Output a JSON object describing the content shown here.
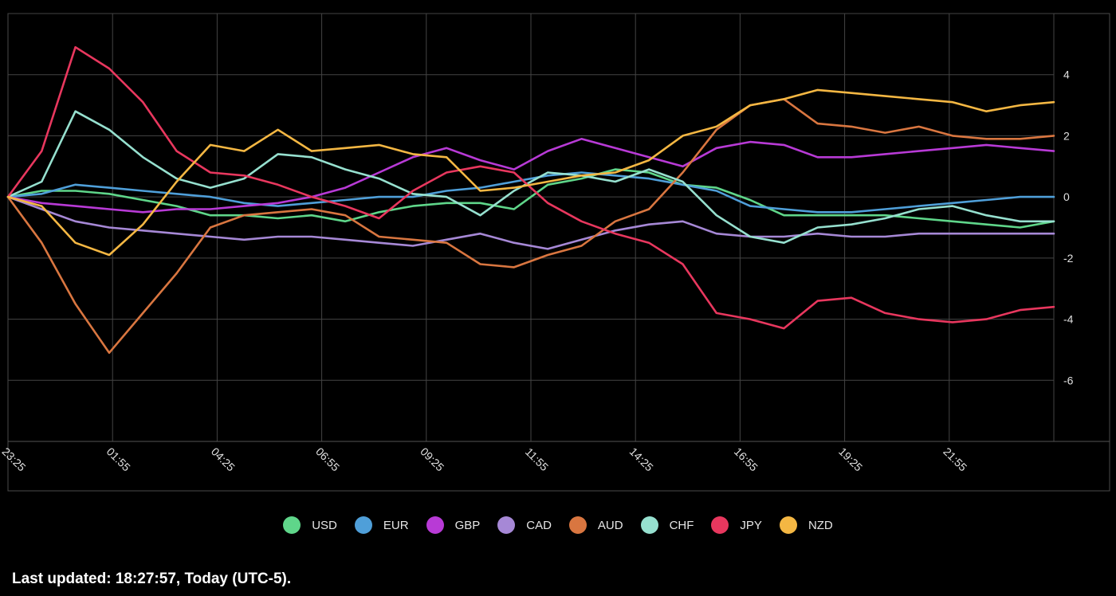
{
  "chart_data": {
    "type": "line",
    "title": "",
    "xlabel": "",
    "ylabel": "",
    "x_ticks": [
      "23:25",
      "01:55",
      "04:25",
      "06:55",
      "09:25",
      "11:55",
      "14:25",
      "16:55",
      "19:25",
      "21:55"
    ],
    "y_ticks": [
      4,
      2,
      0,
      -2,
      -4,
      -6
    ],
    "ylim": [
      -8,
      6
    ],
    "grid": true,
    "legend_position": "bottom",
    "series": [
      {
        "name": "USD",
        "color": "#5fd68a",
        "values": [
          0.0,
          0.2,
          0.2,
          0.1,
          -0.1,
          -0.3,
          -0.6,
          -0.6,
          -0.7,
          -0.6,
          -0.8,
          -0.5,
          -0.3,
          -0.2,
          -0.2,
          -0.4,
          0.4,
          0.6,
          0.9,
          0.8,
          0.4,
          0.3,
          -0.1,
          -0.6,
          -0.6,
          -0.6,
          -0.6,
          -0.7,
          -0.8,
          -0.9,
          -1.0,
          -0.8
        ]
      },
      {
        "name": "EUR",
        "color": "#4f9fd9",
        "values": [
          0.0,
          0.1,
          0.4,
          0.3,
          0.2,
          0.1,
          0.0,
          -0.2,
          -0.3,
          -0.2,
          -0.1,
          0.0,
          0.0,
          0.2,
          0.3,
          0.5,
          0.7,
          0.8,
          0.7,
          0.6,
          0.4,
          0.2,
          -0.3,
          -0.4,
          -0.5,
          -0.5,
          -0.4,
          -0.3,
          -0.2,
          -0.1,
          0.0,
          0.0
        ]
      },
      {
        "name": "GBP",
        "color": "#b83ad6",
        "values": [
          0.0,
          -0.2,
          -0.3,
          -0.4,
          -0.5,
          -0.4,
          -0.4,
          -0.3,
          -0.2,
          0.0,
          0.3,
          0.8,
          1.3,
          1.6,
          1.2,
          0.9,
          1.5,
          1.9,
          1.6,
          1.3,
          1.0,
          1.6,
          1.8,
          1.7,
          1.3,
          1.3,
          1.4,
          1.5,
          1.6,
          1.7,
          1.6,
          1.5
        ]
      },
      {
        "name": "CAD",
        "color": "#a688d6",
        "values": [
          0.0,
          -0.4,
          -0.8,
          -1.0,
          -1.1,
          -1.2,
          -1.3,
          -1.4,
          -1.3,
          -1.3,
          -1.4,
          -1.5,
          -1.6,
          -1.4,
          -1.2,
          -1.5,
          -1.7,
          -1.4,
          -1.1,
          -0.9,
          -0.8,
          -1.2,
          -1.3,
          -1.3,
          -1.2,
          -1.3,
          -1.3,
          -1.2,
          -1.2,
          -1.2,
          -1.2,
          -1.2
        ]
      },
      {
        "name": "AUD",
        "color": "#d97640",
        "values": [
          0.0,
          -1.5,
          -3.5,
          -5.1,
          -3.8,
          -2.5,
          -1.0,
          -0.6,
          -0.5,
          -0.4,
          -0.6,
          -1.3,
          -1.4,
          -1.5,
          -2.2,
          -2.3,
          -1.9,
          -1.6,
          -0.8,
          -0.4,
          0.8,
          2.2,
          3.0,
          3.2,
          2.4,
          2.3,
          2.1,
          2.3,
          2.0,
          1.9,
          1.9,
          2.0
        ]
      },
      {
        "name": "CHF",
        "color": "#96e0cf",
        "values": [
          0.0,
          0.5,
          2.8,
          2.2,
          1.3,
          0.6,
          0.3,
          0.6,
          1.4,
          1.3,
          0.9,
          0.6,
          0.1,
          0.0,
          -0.6,
          0.2,
          0.8,
          0.7,
          0.5,
          0.9,
          0.5,
          -0.6,
          -1.3,
          -1.5,
          -1.0,
          -0.9,
          -0.7,
          -0.4,
          -0.3,
          -0.6,
          -0.8,
          -0.8
        ]
      },
      {
        "name": "JPY",
        "color": "#e8375e",
        "values": [
          0.0,
          1.5,
          4.9,
          4.2,
          3.1,
          1.5,
          0.8,
          0.7,
          0.4,
          0.0,
          -0.3,
          -0.7,
          0.2,
          0.8,
          1.0,
          0.8,
          -0.2,
          -0.8,
          -1.2,
          -1.5,
          -2.2,
          -3.8,
          -4.0,
          -4.3,
          -3.4,
          -3.3,
          -3.8,
          -4.0,
          -4.1,
          -4.0,
          -3.7,
          -3.6
        ]
      },
      {
        "name": "NZD",
        "color": "#f4b743",
        "values": [
          0.0,
          -0.3,
          -1.5,
          -1.9,
          -0.9,
          0.5,
          1.7,
          1.5,
          2.2,
          1.5,
          1.6,
          1.7,
          1.4,
          1.3,
          0.2,
          0.3,
          0.5,
          0.7,
          0.8,
          1.2,
          2.0,
          2.3,
          3.0,
          3.2,
          3.5,
          3.4,
          3.3,
          3.2,
          3.1,
          2.8,
          3.0,
          3.1
        ]
      }
    ]
  },
  "footer": {
    "last_updated": "Last updated: 18:27:57, Today (UTC-5)."
  }
}
